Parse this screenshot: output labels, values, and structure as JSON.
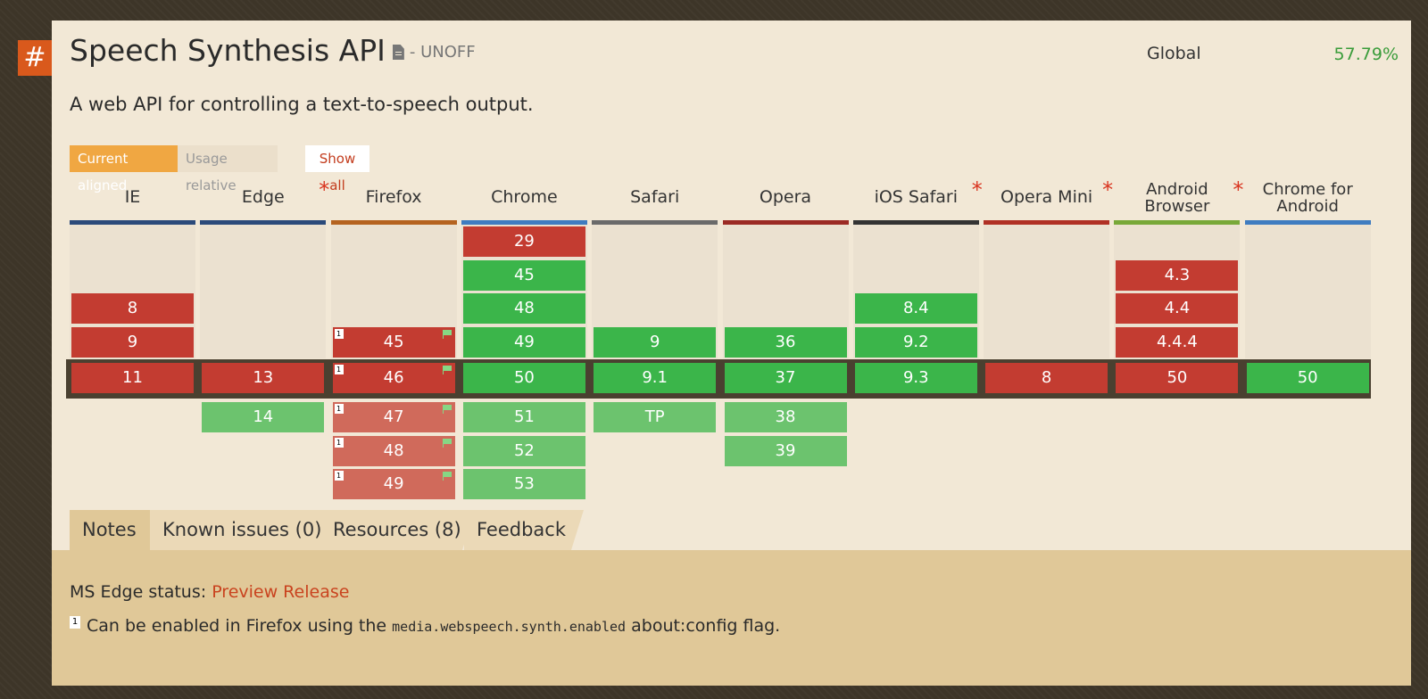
{
  "feature": {
    "anchor": "#",
    "title": "Speech Synthesis API",
    "status": "- UNOFF",
    "description": "A web API for controlling a text-to-speech output.",
    "global_label": "Global",
    "global_pct": "57.79%"
  },
  "controls": {
    "current_aligned": "Current aligned",
    "usage_relative": "Usage relative",
    "show_all": "Show all"
  },
  "browsers": [
    {
      "name": "IE",
      "asterisk": false,
      "bar_color": "#2b4a7a"
    },
    {
      "name": "Edge",
      "asterisk": true,
      "bar_color": "#2b4a7a"
    },
    {
      "name": "Firefox",
      "asterisk": false,
      "bar_color": "#b5631f"
    },
    {
      "name": "Chrome",
      "asterisk": false,
      "bar_color": "#3f7cc0"
    },
    {
      "name": "Safari",
      "asterisk": false,
      "bar_color": "#6a6a6a"
    },
    {
      "name": "Opera",
      "asterisk": false,
      "bar_color": "#9b2a24"
    },
    {
      "name": "iOS Safari",
      "asterisk": true,
      "bar_color": "#333333"
    },
    {
      "name": "Opera Mini",
      "asterisk": true,
      "bar_color": "#b03024"
    },
    {
      "name": "Android Browser",
      "lines": [
        "Android",
        "Browser"
      ],
      "asterisk": true,
      "bar_color": "#78a838"
    },
    {
      "name": "Chrome for Android",
      "lines": [
        "Chrome for",
        "Android"
      ],
      "asterisk": false,
      "bar_color": "#3f7cc0"
    }
  ],
  "rows": {
    "past": [
      [
        "",
        "",
        "",
        "29",
        "",
        "",
        "",
        "",
        "",
        ""
      ],
      [
        "",
        "",
        "",
        "45",
        "",
        "",
        "",
        "",
        "4.3",
        ""
      ],
      [
        "8",
        "",
        "",
        "48",
        "",
        "",
        "8.4",
        "",
        "4.4",
        ""
      ],
      [
        "9",
        "",
        "45",
        "49",
        "9",
        "36",
        "9.2",
        "",
        "4.4.4",
        ""
      ]
    ],
    "current": [
      "11",
      "13",
      "46",
      "50",
      "9.1",
      "37",
      "9.3",
      "8",
      "50",
      "50"
    ],
    "future": [
      [
        "",
        "14",
        "47",
        "51",
        "TP",
        "38",
        "",
        "",
        "",
        ""
      ],
      [
        "",
        "",
        "48",
        "52",
        "",
        "39",
        "",
        "",
        "",
        ""
      ],
      [
        "",
        "",
        "49",
        "53",
        "",
        "",
        "",
        "",
        "",
        ""
      ]
    ]
  },
  "support": {
    "past": [
      [
        "",
        "",
        "",
        "n",
        "",
        "",
        "",
        "",
        "",
        ""
      ],
      [
        "",
        "",
        "",
        "y",
        "",
        "",
        "",
        "",
        "n",
        ""
      ],
      [
        "n",
        "",
        "",
        "y",
        "",
        "",
        "y",
        "",
        "n",
        ""
      ],
      [
        "n",
        "",
        "n1",
        "y",
        "y",
        "y",
        "y",
        "",
        "n",
        ""
      ]
    ],
    "current": [
      "n",
      "n",
      "n1",
      "y",
      "y",
      "y",
      "y",
      "n",
      "n",
      "y"
    ],
    "future": [
      [
        "",
        "y",
        "n1",
        "y",
        "y",
        "y",
        "",
        "",
        "",
        ""
      ],
      [
        "",
        "",
        "n1",
        "y",
        "",
        "y",
        "",
        "",
        "",
        ""
      ],
      [
        "",
        "",
        "n1",
        "y",
        "",
        "",
        "",
        "",
        "",
        ""
      ]
    ]
  },
  "note_marker": "1",
  "tabs": [
    "Notes",
    "Known issues (0)",
    "Resources (8)",
    "Feedback"
  ],
  "notes": {
    "ms_status_label": "MS Edge status:",
    "ms_status_link": "Preview Release",
    "footnote_number": "1",
    "footnote_before": "Can be enabled in Firefox using the",
    "footnote_code": "media.webspeech.synth.enabled",
    "footnote_after": "about:config flag."
  }
}
